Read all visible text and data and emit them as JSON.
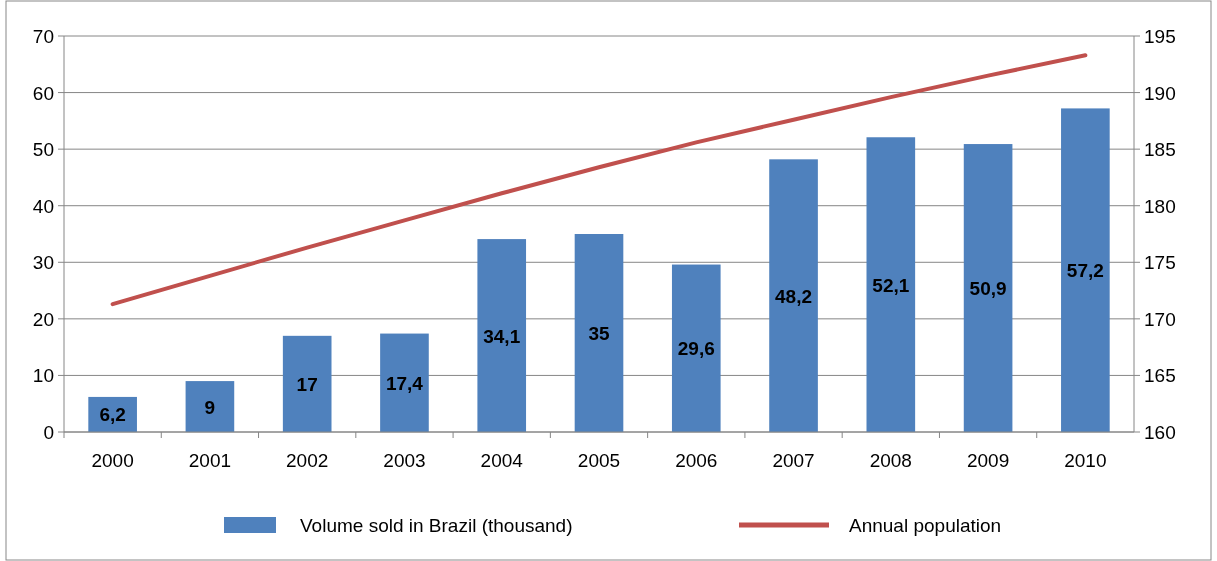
{
  "chart_data": {
    "type": "bar",
    "categories": [
      "2000",
      "2001",
      "2002",
      "2003",
      "2004",
      "2005",
      "2006",
      "2007",
      "2008",
      "2009",
      "2010"
    ],
    "series": [
      {
        "name": "Volume sold in Brazil (thousand)",
        "color": "#4f81bd",
        "values": [
          6.2,
          9,
          17,
          17.4,
          34.1,
          35,
          29.6,
          48.2,
          52.1,
          50.9,
          57.2
        ],
        "value_labels": [
          "6,2",
          "9",
          "17",
          "17,4",
          "34,1",
          "35",
          "29,6",
          "48,2",
          "52,1",
          "50,9",
          "57,2"
        ]
      },
      {
        "name": "Annual population",
        "type": "line",
        "axis": "y2",
        "color": "#c0504d",
        "values": [
          171.3,
          173.8,
          176.3,
          178.7,
          181.1,
          183.4,
          185.6,
          187.6,
          189.6,
          191.5,
          193.3
        ]
      }
    ],
    "ylim": [
      0,
      70
    ],
    "yticks": [
      0,
      10,
      20,
      30,
      40,
      50,
      60,
      70
    ],
    "y2lim": [
      160,
      195
    ],
    "y2ticks": [
      160,
      165,
      170,
      175,
      180,
      185,
      190,
      195
    ],
    "grid": "y",
    "legend": "bottom",
    "marker": "none",
    "line_style": "solid"
  }
}
